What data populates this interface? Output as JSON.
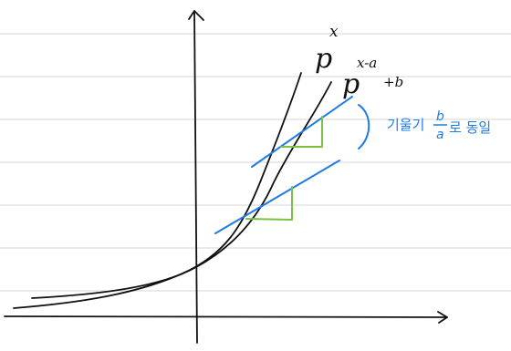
{
  "colors": {
    "ruled_line": "#d6d6d6",
    "ink": "#111111",
    "tangent": "#1f7be8",
    "triangle": "#7cc242"
  },
  "labels": {
    "curve1": {
      "base": "p",
      "exp": "x"
    },
    "curve2": {
      "base": "p",
      "exp": "x-a",
      "suffix": "+b"
    }
  },
  "annotation": {
    "prefix": "기울기",
    "fraction_num": "b",
    "fraction_den": "a",
    "suffix": "로 동일"
  }
}
